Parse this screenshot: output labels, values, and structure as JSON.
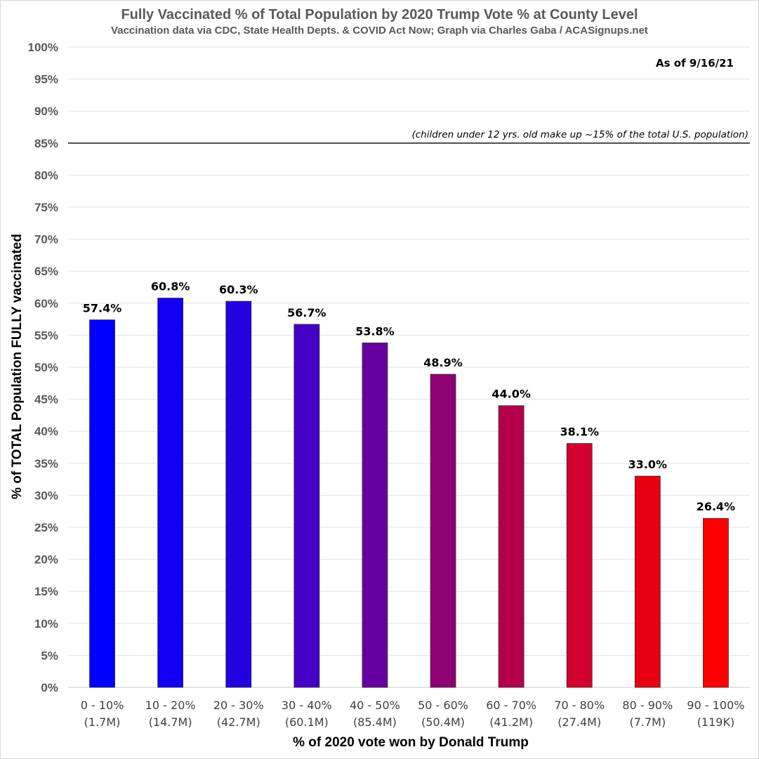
{
  "chart_data": {
    "type": "bar",
    "title": "Fully Vaccinated % of Total Population by 2020 Trump Vote % at County Level",
    "subtitle": "Vaccination data via CDC, State Health Depts. & COVID Act Now; Graph via Charles Gaba / ACASignups.net",
    "xlabel": "% of 2020 vote won by Donald Trump",
    "ylabel": "% of TOTAL Population FULLY vaccinated",
    "ylim": [
      0,
      100
    ],
    "ytick_step": 5,
    "ytick_labels": [
      "0%",
      "5%",
      "10%",
      "15%",
      "20%",
      "25%",
      "30%",
      "35%",
      "40%",
      "45%",
      "50%",
      "55%",
      "60%",
      "65%",
      "70%",
      "75%",
      "80%",
      "85%",
      "90%",
      "95%",
      "100%"
    ],
    "categories": [
      "0 - 10%",
      "10 - 20%",
      "20 - 30%",
      "30 - 40%",
      "40 - 50%",
      "50 - 60%",
      "60 - 70%",
      "70 - 80%",
      "80 - 90%",
      "90 - 100%"
    ],
    "population": [
      "(1.7M)",
      "(14.7M)",
      "(42.7M)",
      "(60.1M)",
      "(85.4M)",
      "(50.4M)",
      "(41.2M)",
      "(27.4M)",
      "(7.7M)",
      "(119K)"
    ],
    "values": [
      57.4,
      60.8,
      60.3,
      56.7,
      53.8,
      48.9,
      44.0,
      38.1,
      33.0,
      26.4
    ],
    "value_labels": [
      "57.4%",
      "60.8%",
      "60.3%",
      "56.7%",
      "53.8%",
      "48.9%",
      "44.0%",
      "38.1%",
      "33.0%",
      "26.4%"
    ],
    "bar_colors": [
      "#0000ff",
      "#1100f0",
      "#2200e0",
      "#4400c4",
      "#6600a0",
      "#8e0072",
      "#b4004c",
      "#d2002e",
      "#e60012",
      "#ff0000"
    ],
    "reference_line": {
      "value": 85,
      "label": "(children under 12 yrs. old make up ~15% of the total U.S. population)"
    },
    "annotation": "As of 9/16/21",
    "grid": true
  }
}
